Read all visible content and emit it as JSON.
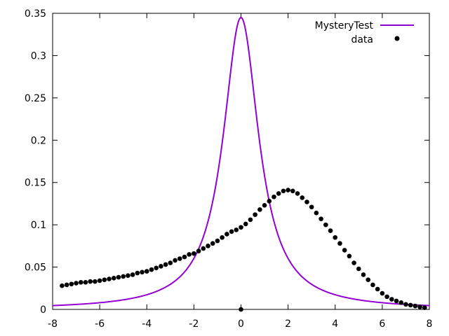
{
  "chart_data": {
    "type": "line",
    "title": "",
    "xlabel": "",
    "ylabel": "",
    "xlim": [
      -8,
      8
    ],
    "ylim": [
      0,
      0.35
    ],
    "x_ticks": [
      -8,
      -6,
      -4,
      -2,
      0,
      2,
      4,
      6,
      8
    ],
    "y_ticks": [
      0,
      0.05,
      0.1,
      0.15,
      0.2,
      0.25,
      0.3,
      0.35
    ],
    "x_tick_labels": [
      "-8",
      "-6",
      "-4",
      "-2",
      "0",
      "2",
      "4",
      "6",
      "8"
    ],
    "y_tick_labels": [
      "0",
      "0.05",
      "0.1",
      "0.15",
      "0.2",
      "0.25",
      "0.3",
      "0.35"
    ],
    "grid": false,
    "legend_position": "top-right",
    "series": [
      {
        "name": "MysteryTest",
        "kind": "line",
        "color": "#9400d3",
        "function": "lorentzian",
        "peak_x": 0,
        "peak_y": 0.345,
        "half_width": 0.92
      },
      {
        "name": "data",
        "kind": "points",
        "color": "#000000",
        "x": [
          -7.6,
          -7.4,
          -7.2,
          -7.0,
          -6.8,
          -6.6,
          -6.4,
          -6.2,
          -6.0,
          -5.8,
          -5.6,
          -5.4,
          -5.2,
          -5.0,
          -4.8,
          -4.6,
          -4.4,
          -4.2,
          -4.0,
          -3.8,
          -3.6,
          -3.4,
          -3.2,
          -3.0,
          -2.8,
          -2.6,
          -2.4,
          -2.2,
          -2.0,
          -1.8,
          -1.6,
          -1.4,
          -1.2,
          -1.0,
          -0.8,
          -0.6,
          -0.4,
          -0.2,
          0.0,
          0.2,
          0.4,
          0.6,
          0.8,
          1.0,
          1.2,
          1.4,
          1.6,
          1.8,
          2.0,
          2.2,
          2.4,
          2.6,
          2.8,
          3.0,
          3.2,
          3.4,
          3.6,
          3.8,
          4.0,
          4.2,
          4.4,
          4.6,
          4.8,
          5.0,
          5.2,
          5.4,
          5.6,
          5.8,
          6.0,
          6.2,
          6.4,
          6.6,
          6.8,
          7.0,
          7.2,
          7.4,
          7.6,
          7.8,
          0.0
        ],
        "y": [
          0.028,
          0.029,
          0.03,
          0.031,
          0.032,
          0.032,
          0.033,
          0.033,
          0.034,
          0.035,
          0.036,
          0.037,
          0.038,
          0.039,
          0.04,
          0.041,
          0.043,
          0.044,
          0.045,
          0.047,
          0.049,
          0.051,
          0.053,
          0.055,
          0.058,
          0.06,
          0.062,
          0.065,
          0.066,
          0.069,
          0.072,
          0.075,
          0.078,
          0.081,
          0.085,
          0.089,
          0.092,
          0.094,
          0.097,
          0.101,
          0.106,
          0.112,
          0.118,
          0.123,
          0.128,
          0.133,
          0.137,
          0.14,
          0.141,
          0.14,
          0.137,
          0.132,
          0.127,
          0.121,
          0.114,
          0.107,
          0.1,
          0.093,
          0.085,
          0.078,
          0.07,
          0.063,
          0.055,
          0.048,
          0.041,
          0.035,
          0.029,
          0.024,
          0.019,
          0.015,
          0.012,
          0.01,
          0.008,
          0.006,
          0.005,
          0.004,
          0.003,
          0.002,
          0.0
        ]
      }
    ]
  }
}
